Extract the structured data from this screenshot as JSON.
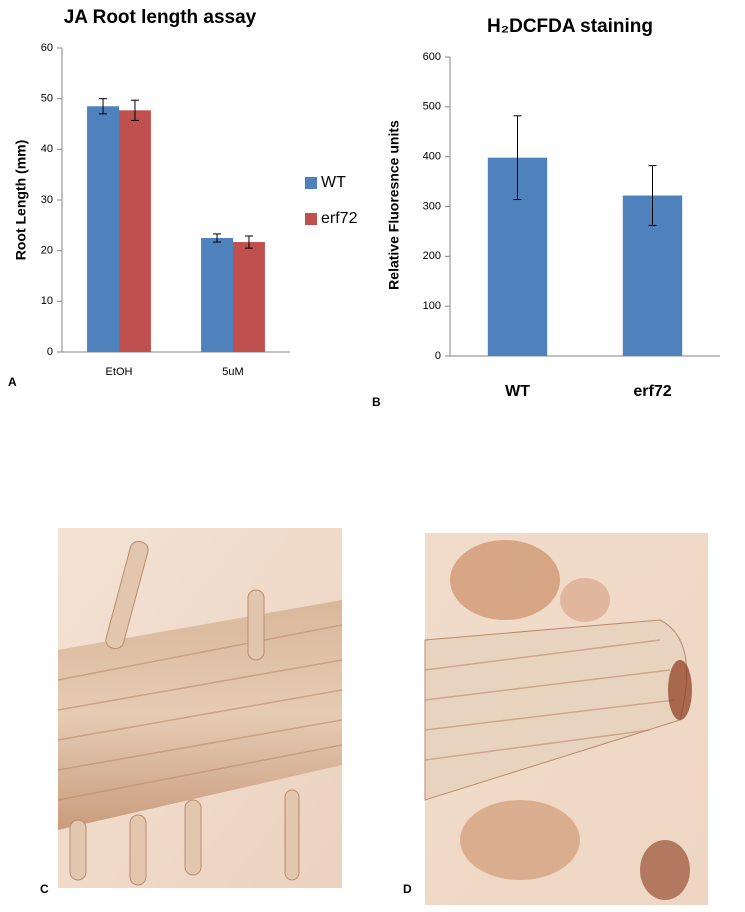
{
  "chart_data": [
    {
      "type": "bar",
      "panel_label": "A",
      "title": "JA Root length assay",
      "y_label": "Root Length (mm)",
      "categories": [
        "EtOH",
        "5uM"
      ],
      "series": [
        {
          "name": "WT",
          "color": "#4f81bd",
          "values": [
            48.5,
            22.5
          ],
          "errors": [
            1.5,
            0.8
          ]
        },
        {
          "name": "erf72",
          "color": "#c0504d",
          "values": [
            47.7,
            21.7
          ],
          "errors": [
            2.0,
            1.2
          ]
        }
      ],
      "ylim": [
        0,
        60
      ],
      "yticks": [
        0,
        10,
        20,
        30,
        40,
        50,
        60
      ],
      "legend": "right"
    },
    {
      "type": "bar",
      "panel_label": "B",
      "title": "H₂DCFDA staining",
      "y_label": "Relative Fluoresnce units",
      "categories": [
        "WT",
        "erf72"
      ],
      "series": [
        {
          "color": "#4f81bd",
          "values": [
            398,
            322
          ],
          "errors": [
            84,
            60
          ]
        }
      ],
      "ylim": [
        0,
        600
      ],
      "yticks": [
        0,
        100,
        200,
        300,
        400,
        500,
        600
      ]
    }
  ],
  "panels": [
    {
      "label": "C"
    },
    {
      "label": "D"
    }
  ]
}
